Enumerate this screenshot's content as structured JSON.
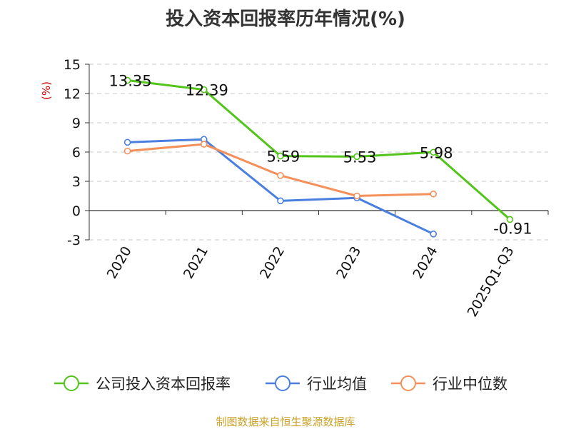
{
  "chart_data": {
    "type": "line",
    "title": "投入资本回报率历年情况(%)",
    "ylabel": "(%)",
    "categories": [
      "2020",
      "2021",
      "2022",
      "2023",
      "2024",
      "2025Q1-Q3"
    ],
    "ylim": [
      -3,
      15
    ],
    "yticks": [
      15,
      12,
      9,
      6,
      3,
      0,
      -3
    ],
    "grid": true,
    "legend_position": "bottom",
    "series": [
      {
        "name": "公司投入资本回报率",
        "color": "#52c41a",
        "values": [
          13.35,
          12.39,
          5.59,
          5.53,
          5.98,
          -0.91
        ],
        "labels": [
          "13.35",
          "12.39",
          "5.59",
          "5.53",
          "5.98",
          "-0.91"
        ]
      },
      {
        "name": "行业均值",
        "color": "#4a7fe0",
        "values": [
          7.0,
          7.3,
          1.0,
          1.3,
          -2.4,
          null
        ]
      },
      {
        "name": "行业中位数",
        "color": "#f4905a",
        "values": [
          6.1,
          6.8,
          3.6,
          1.5,
          1.7,
          null
        ]
      }
    ]
  },
  "source": "制图数据来自恒生聚源数据库"
}
